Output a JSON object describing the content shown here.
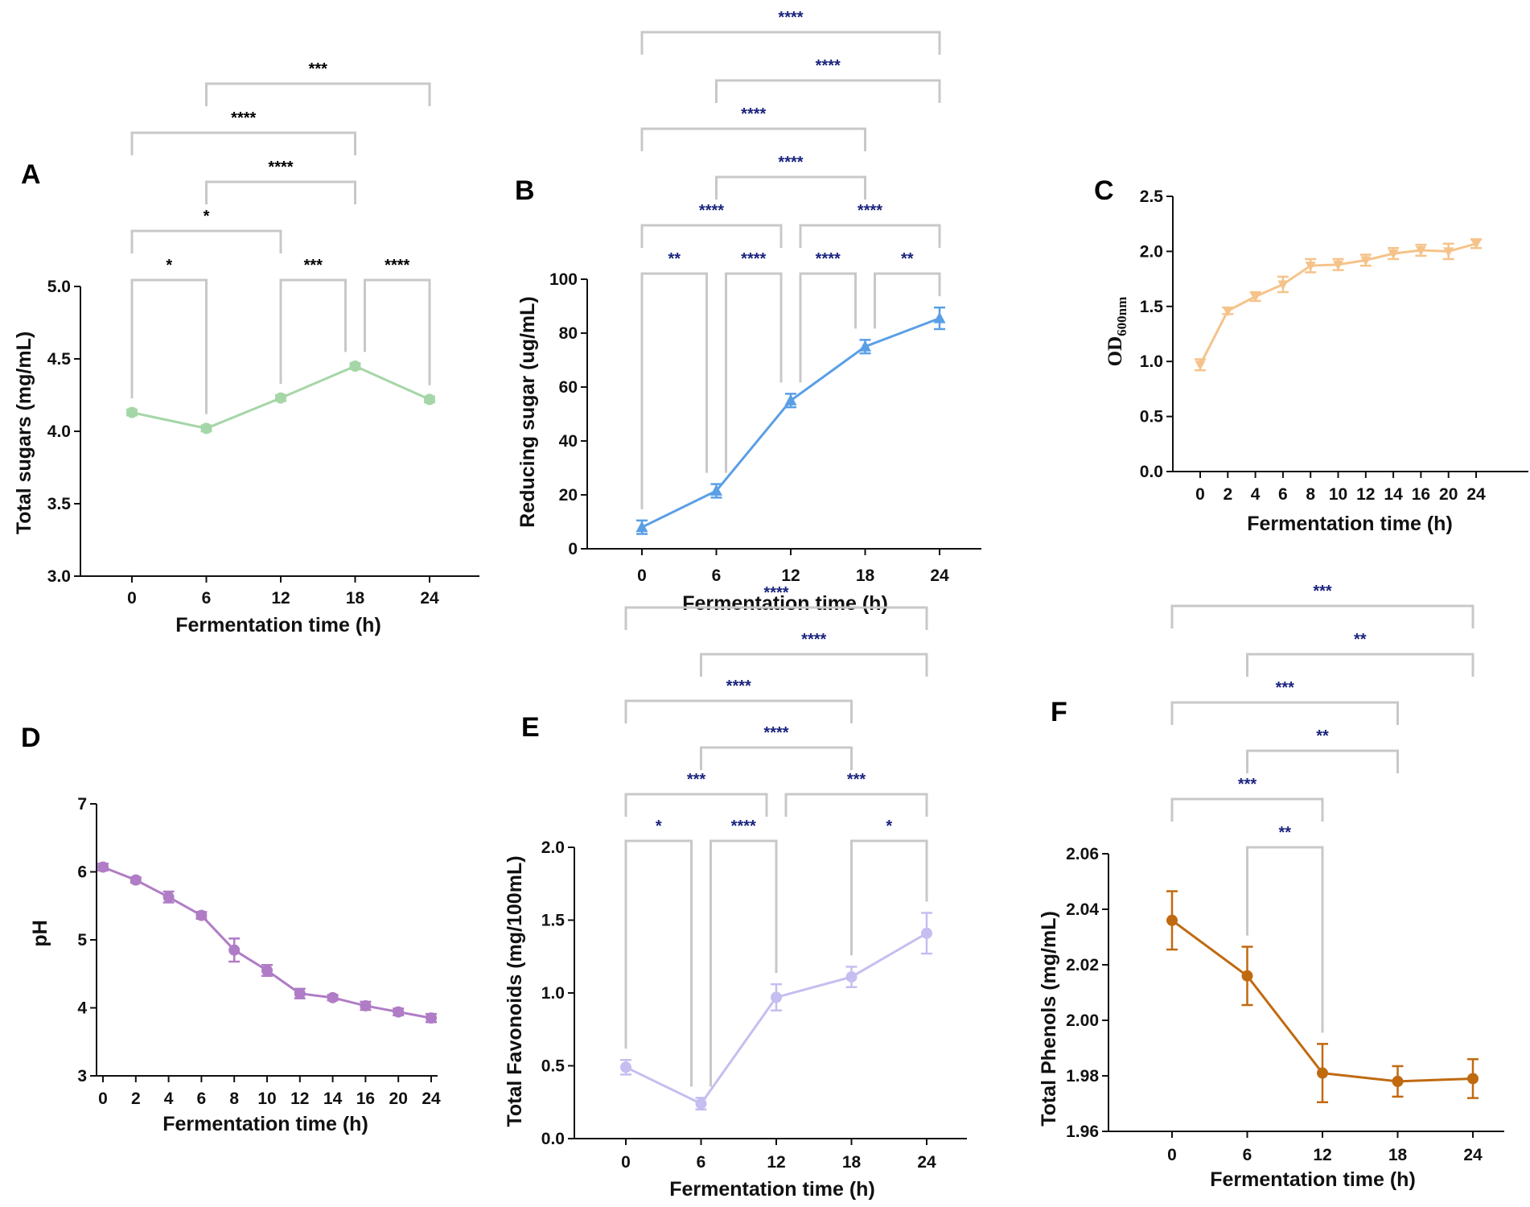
{
  "figure": {
    "xlabel": "Fermentation time (h)",
    "sig_color_dark": "#000000",
    "sig_color_blue": "#1a237e",
    "bracket_color": "#c8c8c8"
  },
  "chart_data": [
    {
      "id": "A",
      "panel_label": "A",
      "type": "line",
      "title": "",
      "xlabel": "Fermentation time (h)",
      "ylabel": "Total sugars (mg/mL)",
      "x": [
        0,
        6,
        12,
        18,
        24
      ],
      "x_tick_labels": [
        "0",
        "6",
        "12",
        "18",
        "24"
      ],
      "y_ticks": [
        "3.0",
        "3.5",
        "4.0",
        "4.5",
        "5.0"
      ],
      "ylim": [
        3.0,
        5.0
      ],
      "series": [
        {
          "name": "Total sugars",
          "values": [
            4.13,
            4.02,
            4.23,
            4.45,
            4.22
          ],
          "errors": [
            0.02,
            0.02,
            0.02,
            0.02,
            0.02
          ],
          "color": "#a5d6a7",
          "marker": "circle"
        }
      ],
      "significance": [
        {
          "from": 0,
          "to": 1,
          "label": "*"
        },
        {
          "from": 2,
          "to": 3,
          "label": "***"
        },
        {
          "from": 3,
          "to": 4,
          "label": "****"
        },
        {
          "from": 0,
          "to": 2,
          "label": "*"
        },
        {
          "from": 1,
          "to": 3,
          "label": "****"
        },
        {
          "from": 0,
          "to": 3,
          "label": "****"
        },
        {
          "from": 1,
          "to": 4,
          "label": "***"
        }
      ],
      "sig_color": "#000000"
    },
    {
      "id": "B",
      "panel_label": "B",
      "type": "line",
      "title": "",
      "xlabel": "Fermentation time (h)",
      "ylabel": "Reducing sugar (ug/mL)",
      "x": [
        0,
        6,
        12,
        18,
        24
      ],
      "x_tick_labels": [
        "0",
        "6",
        "12",
        "18",
        "24"
      ],
      "y_ticks": [
        "0",
        "20",
        "40",
        "60",
        "80",
        "100"
      ],
      "ylim": [
        0,
        100
      ],
      "series": [
        {
          "name": "Reducing sugar",
          "values": [
            8,
            21.5,
            55,
            75,
            85.5
          ],
          "errors": [
            2.5,
            2.5,
            2.5,
            2.5,
            4
          ],
          "color": "#5a9fe6",
          "marker": "triangle-up"
        }
      ],
      "significance": [
        {
          "from": 0,
          "to": 1,
          "label": "**"
        },
        {
          "from": 1,
          "to": 2,
          "label": "****"
        },
        {
          "from": 2,
          "to": 3,
          "label": "****"
        },
        {
          "from": 3,
          "to": 4,
          "label": "**"
        },
        {
          "from": 0,
          "to": 2,
          "label": "****"
        },
        {
          "from": 2,
          "to": 4,
          "label": "****"
        },
        {
          "from": 1,
          "to": 3,
          "label": "****"
        },
        {
          "from": 0,
          "to": 3,
          "label": "****"
        },
        {
          "from": 1,
          "to": 4,
          "label": "****"
        },
        {
          "from": 0,
          "to": 4,
          "label": "****"
        }
      ],
      "sig_color": "#1a237e"
    },
    {
      "id": "C",
      "panel_label": "C",
      "type": "line",
      "title": "",
      "xlabel": "Fermentation time (h)",
      "ylabel": "OD",
      "ylabel_sub": "600nm",
      "x": [
        0,
        2,
        4,
        6,
        8,
        10,
        12,
        14,
        16,
        20,
        24
      ],
      "x_tick_labels": [
        "0",
        "2",
        "4",
        "6",
        "8",
        "10",
        "12",
        "14",
        "16",
        "20",
        "24"
      ],
      "y_ticks": [
        "0.0",
        "0.5",
        "1.0",
        "1.5",
        "2.0",
        "2.5"
      ],
      "ylim": [
        0,
        2.5
      ],
      "series": [
        {
          "name": "OD600nm",
          "values": [
            0.97,
            1.46,
            1.59,
            1.7,
            1.87,
            1.88,
            1.92,
            1.98,
            2.01,
            2.0,
            2.07
          ],
          "errors": [
            0.05,
            0.03,
            0.04,
            0.07,
            0.06,
            0.05,
            0.05,
            0.05,
            0.05,
            0.07,
            0.04
          ],
          "color": "#f5c38a",
          "marker": "triangle-down"
        }
      ],
      "significance": []
    },
    {
      "id": "D",
      "panel_label": "D",
      "type": "line",
      "title": "",
      "xlabel": "Fermentation time (h)",
      "ylabel": "pH",
      "x": [
        0,
        2,
        4,
        6,
        8,
        10,
        12,
        14,
        16,
        20,
        24
      ],
      "x_tick_labels": [
        "0",
        "2",
        "4",
        "6",
        "8",
        "10",
        "12",
        "14",
        "16",
        "20",
        "24"
      ],
      "y_ticks": [
        "3",
        "4",
        "5",
        "6",
        "7"
      ],
      "ylim": [
        3,
        7
      ],
      "series": [
        {
          "name": "pH",
          "values": [
            6.07,
            5.88,
            5.63,
            5.36,
            4.85,
            4.55,
            4.21,
            4.15,
            4.03,
            3.94,
            3.85
          ],
          "errors": [
            0.05,
            0.04,
            0.08,
            0.05,
            0.17,
            0.08,
            0.07,
            0.04,
            0.06,
            0.05,
            0.06
          ],
          "color": "#b07cc6",
          "marker": "circle"
        }
      ],
      "significance": []
    },
    {
      "id": "E",
      "panel_label": "E",
      "type": "line",
      "title": "",
      "xlabel": "Fermentation time (h)",
      "ylabel": "Total Favonoids (mg/100mL)",
      "x": [
        0,
        6,
        12,
        18,
        24
      ],
      "x_tick_labels": [
        "0",
        "6",
        "12",
        "18",
        "24"
      ],
      "y_ticks": [
        "0.0",
        "0.5",
        "1.0",
        "1.5",
        "2.0"
      ],
      "ylim": [
        0,
        2.0
      ],
      "series": [
        {
          "name": "Total Favonoids",
          "values": [
            0.49,
            0.24,
            0.97,
            1.11,
            1.41
          ],
          "errors": [
            0.05,
            0.04,
            0.09,
            0.07,
            0.14
          ],
          "color": "#c5bef0",
          "marker": "circle"
        }
      ],
      "significance": [
        {
          "from": 0,
          "to": 1,
          "label": "*"
        },
        {
          "from": 1,
          "to": 2,
          "label": "****"
        },
        {
          "from": 3,
          "to": 4,
          "label": "*"
        },
        {
          "from": 0,
          "to": 2,
          "label": "***"
        },
        {
          "from": 2,
          "to": 4,
          "label": "***"
        },
        {
          "from": 1,
          "to": 3,
          "label": "****"
        },
        {
          "from": 0,
          "to": 3,
          "label": "****"
        },
        {
          "from": 1,
          "to": 4,
          "label": "****"
        },
        {
          "from": 0,
          "to": 4,
          "label": "****"
        }
      ],
      "sig_color": "#1a237e"
    },
    {
      "id": "F",
      "panel_label": "F",
      "type": "line",
      "title": "",
      "xlabel": "Fermentation time (h)",
      "ylabel": "Total Phenols (mg/mL)",
      "x": [
        0,
        6,
        12,
        18,
        24
      ],
      "x_tick_labels": [
        "0",
        "6",
        "12",
        "18",
        "24"
      ],
      "y_ticks": [
        "1.96",
        "1.98",
        "2.00",
        "2.02",
        "2.04",
        "2.06"
      ],
      "ylim": [
        1.96,
        2.06
      ],
      "series": [
        {
          "name": "Total Phenols",
          "values": [
            2.036,
            2.016,
            1.981,
            1.978,
            1.979
          ],
          "errors": [
            0.0105,
            0.0105,
            0.0105,
            0.0055,
            0.007
          ],
          "color": "#c06a10",
          "marker": "circle"
        }
      ],
      "significance": [
        {
          "from": 1,
          "to": 2,
          "label": "**"
        },
        {
          "from": 0,
          "to": 2,
          "label": "***"
        },
        {
          "from": 1,
          "to": 3,
          "label": "**"
        },
        {
          "from": 0,
          "to": 3,
          "label": "***"
        },
        {
          "from": 1,
          "to": 4,
          "label": "**"
        },
        {
          "from": 0,
          "to": 4,
          "label": "***"
        }
      ],
      "sig_color": "#1a237e"
    }
  ]
}
